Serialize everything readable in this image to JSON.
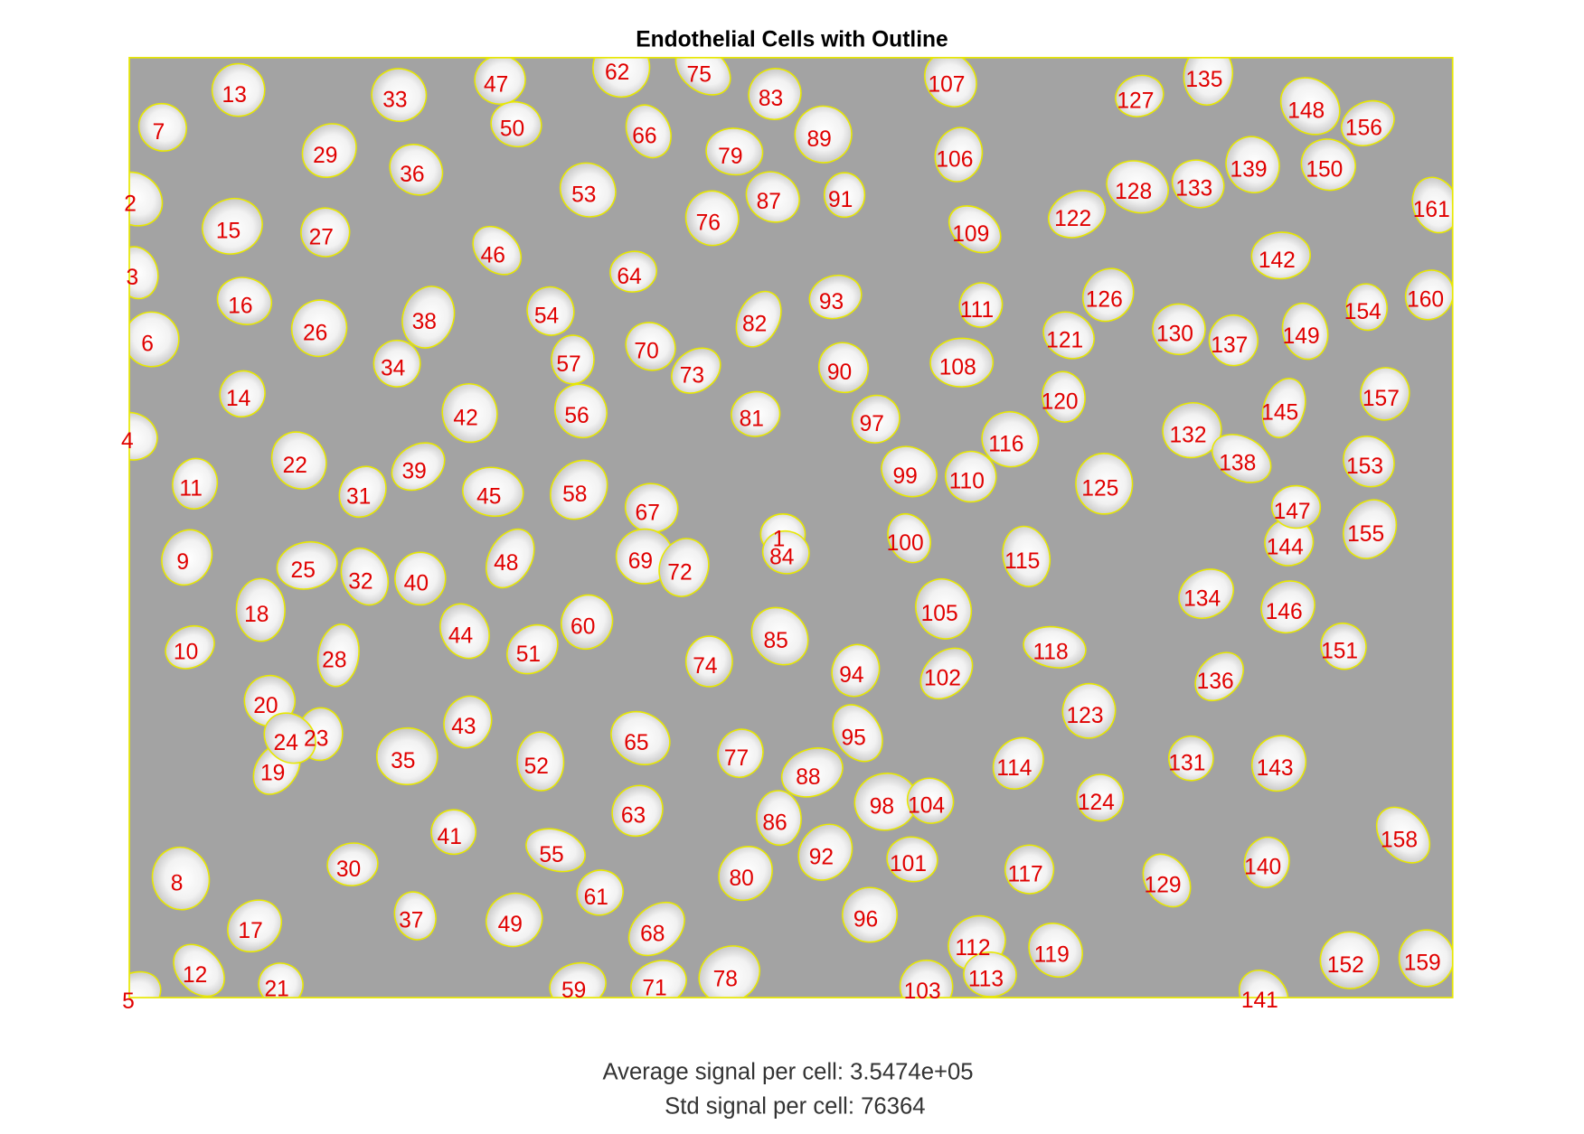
{
  "title": "Endothelial Cells with Outline",
  "image": {
    "cell_labels": [
      "1",
      "2",
      "3",
      "4",
      "5",
      "6",
      "7",
      "8",
      "9",
      "10",
      "11",
      "12",
      "13",
      "14",
      "15",
      "16",
      "17",
      "18",
      "19",
      "20",
      "21",
      "22",
      "23",
      "24",
      "25",
      "26",
      "27",
      "28",
      "29",
      "30",
      "31",
      "32",
      "33",
      "34",
      "35",
      "36",
      "37",
      "38",
      "39",
      "40",
      "41",
      "42",
      "43",
      "44",
      "45",
      "46",
      "47",
      "48",
      "49",
      "50",
      "51",
      "52",
      "53",
      "54",
      "55",
      "56",
      "57",
      "58",
      "59",
      "60",
      "61",
      "62",
      "63",
      "64",
      "65",
      "66",
      "67",
      "68",
      "69",
      "70",
      "71",
      "72",
      "73",
      "74",
      "75",
      "76",
      "77",
      "78",
      "79",
      "80",
      "81",
      "82",
      "83",
      "84",
      "85",
      "86",
      "87",
      "88",
      "89",
      "90",
      "91",
      "92",
      "93",
      "94",
      "95",
      "96",
      "97",
      "98",
      "99",
      "100",
      "101",
      "102",
      "103",
      "104",
      "105",
      "106",
      "107",
      "108",
      "109",
      "110",
      "111",
      "112",
      "113",
      "114",
      "115",
      "116",
      "117",
      "118",
      "119",
      "120",
      "121",
      "122",
      "123",
      "124",
      "125",
      "126",
      "127",
      "128",
      "129",
      "130",
      "131",
      "132",
      "133",
      "134",
      "135",
      "136",
      "137",
      "138",
      "139",
      "140",
      "141",
      "142",
      "143",
      "144",
      "145",
      "146",
      "147",
      "148",
      "149",
      "150",
      "151",
      "152",
      "153",
      "154",
      "155",
      "156",
      "157",
      "158",
      "159",
      "160",
      "161"
    ]
  },
  "footer": {
    "lines": [
      "Average signal per cell: 3.5474e+05",
      "Std signal per cell: 76364"
    ]
  }
}
